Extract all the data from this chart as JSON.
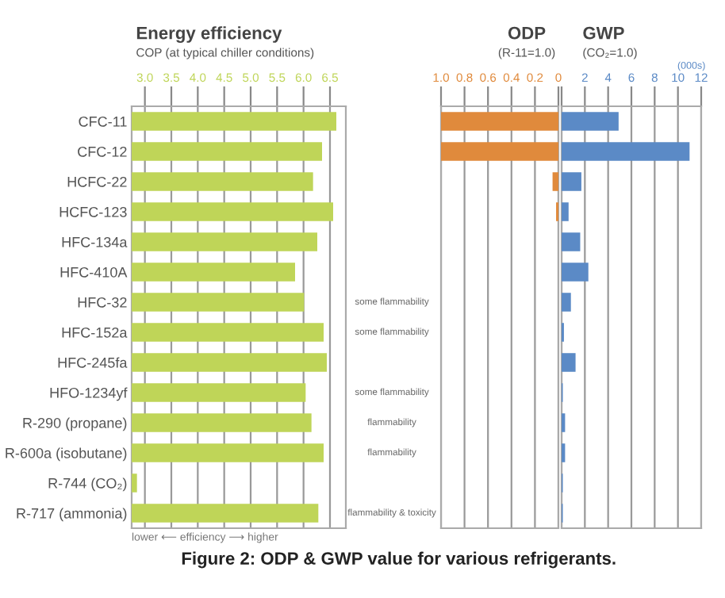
{
  "chart_data": [
    {
      "type": "bar",
      "orientation": "horizontal",
      "title": "Energy efficiency",
      "subtitle": "COP (at typical chiller conditions)",
      "xlabel": "lower ⟵ efficiency ⟶ higher",
      "categories": [
        "CFC-11",
        "CFC-12",
        "HCFC-22",
        "HCFC-123",
        "HFC-134a",
        "HFC-410A",
        "HFC-32",
        "HFC-152a",
        "HFC-245fa",
        "HFO-1234yf",
        "R-290 (propane)",
        "R-600a (isobutane)",
        "R-744 (CO₂)",
        "R-717 (ammonia)"
      ],
      "values": [
        6.62,
        6.35,
        6.18,
        6.56,
        6.26,
        5.84,
        6.01,
        6.38,
        6.44,
        6.04,
        6.15,
        6.38,
        2.85,
        6.28
      ],
      "color": "#bfd558",
      "xlim": [
        2.75,
        6.8
      ],
      "xticks": [
        {
          "value": 3.0,
          "label": "3.0"
        },
        3.5,
        {
          "value": 4.0,
          "label": "4.0"
        },
        4.5,
        {
          "value": 5.0,
          "label": "5.0"
        },
        5.5,
        {
          "value": 6.0,
          "label": "6.0"
        },
        6.5
      ],
      "grid": "x",
      "legend": false,
      "annotations": [
        "some flammability",
        "some flammability",
        "some flammability",
        "flammability",
        "flammability",
        "flammability & toxicity"
      ]
    },
    {
      "type": "bar",
      "orientation": "horizontal",
      "title": "ODP",
      "subtitle": "(R-11=1.0)",
      "values": [
        1.0,
        1.0,
        0.05,
        0.02,
        null,
        null,
        null,
        null,
        null,
        null,
        null,
        null,
        null,
        null
      ],
      "color": "#e08a3c",
      "xlim": [
        1.0,
        0
      ],
      "xticks": [
        {
          "value": 1.0,
          "label": "1.0"
        },
        0.8,
        0.6,
        0.4,
        0.2,
        0
      ],
      "grid": "x",
      "tick_labels": "x",
      "legend": false
    },
    {
      "type": "bar",
      "orientation": "horizontal",
      "title": "GWP",
      "subtitle": "(CO₂=1.0)",
      "xlabel": "(000s)",
      "values": [
        4.9,
        11.0,
        1.7,
        0.6,
        1.6,
        2.3,
        0.8,
        0.2,
        1.2,
        0.1,
        0.3,
        0.3,
        0.1,
        0.1
      ],
      "color": "#5b8ac6",
      "xlim": [
        0,
        12
      ],
      "xticks": [
        {
          "value": 0,
          "label": null
        },
        2,
        4,
        6,
        8,
        10,
        12
      ],
      "grid": "x",
      "tick_labels": "x",
      "legend": false,
      "annotations": [
        "Figure 2: ODP & GWP value for various refrigerants."
      ]
    }
  ]
}
